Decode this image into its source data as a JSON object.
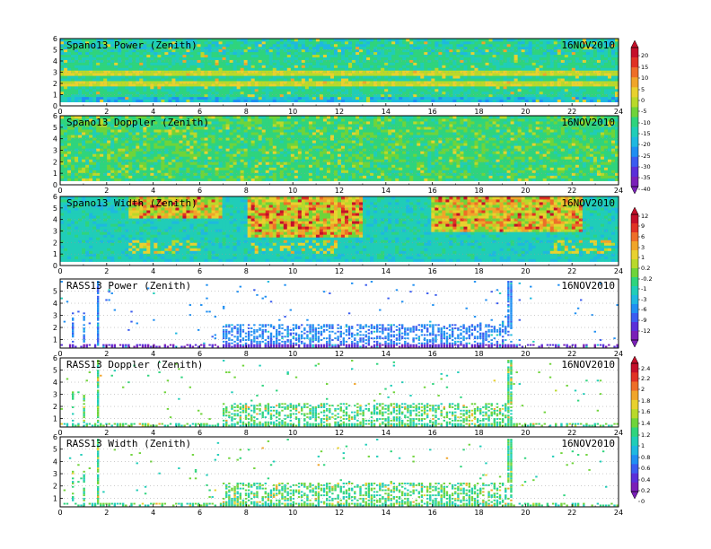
{
  "date_label": "16NOV2010",
  "colors": {
    "palette_a": [
      "#7a1fb8",
      "#5a2fd9",
      "#3a5cf0",
      "#1f8ff2",
      "#1eb8e0",
      "#20cdb8",
      "#2fd47d",
      "#6fd43a",
      "#b9d92a",
      "#e8d12f",
      "#f0a52a",
      "#ee6e28",
      "#e03224",
      "#c4102a"
    ],
    "palette_b": [
      "#7a1fb8",
      "#5a2fd9",
      "#3a5cf0",
      "#1f8ff2",
      "#1eb8e0",
      "#20cdb8",
      "#2fd47d",
      "#6fd43a",
      "#b9d92a",
      "#e8d12f",
      "#f0a52a",
      "#ee6e28",
      "#e03224",
      "#c4102a"
    ]
  },
  "chart_data": [
    {
      "type": "heatmap",
      "title": "Spano13 Power (Zenith)",
      "date": "16NOV2010",
      "x_ticks": [
        "0",
        "2",
        "4",
        "6",
        "8",
        "10",
        "12",
        "14",
        "16",
        "18",
        "20",
        "22",
        "24"
      ],
      "y_ticks": [
        "0",
        "1",
        "2",
        "3",
        "4",
        "5",
        "6"
      ],
      "xlim": [
        0,
        24
      ],
      "ylim": [
        0,
        6
      ],
      "colorbar_ref": "cb1",
      "dominant_levels": [
        "-15",
        "-10",
        "5"
      ],
      "notes": "Enhanced power layers near 2 and 3 km across the day; strong near-surface values below 1 km."
    },
    {
      "type": "heatmap",
      "title": "Spano13 Doppler (Zenith)",
      "date": "16NOV2010",
      "x_ticks": [
        "0",
        "2",
        "4",
        "6",
        "8",
        "10",
        "12",
        "14",
        "16",
        "18",
        "20",
        "22",
        "24"
      ],
      "y_ticks": [
        "0",
        "1",
        "2",
        "3",
        "4",
        "5",
        "6"
      ],
      "xlim": [
        0,
        24
      ],
      "ylim": [
        0,
        6
      ],
      "colorbar_ref": "cb1",
      "dominant_levels": [
        "-10",
        "-5"
      ]
    },
    {
      "type": "heatmap",
      "title": "Spano13 Width (Zenith)",
      "date": "16NOV2010",
      "x_ticks": [
        "0",
        "2",
        "4",
        "6",
        "8",
        "10",
        "12",
        "14",
        "16",
        "18",
        "20",
        "22",
        "24"
      ],
      "y_ticks": [
        "0",
        "1",
        "2",
        "3",
        "4",
        "5",
        "6"
      ],
      "xlim": [
        0,
        24
      ],
      "ylim": [
        0,
        6
      ],
      "colorbar_ref": "cb2",
      "dominant_levels": [
        "-1",
        "3",
        "9"
      ],
      "notes": "Large widths above 2.5 km between about 8 and 13 h and again near 16 to 22 h."
    },
    {
      "type": "scatter",
      "title": "RASS13 Power (Zenith)",
      "date": "16NOV2010",
      "x_ticks": [
        "0",
        "2",
        "4",
        "6",
        "8",
        "10",
        "12",
        "14",
        "16",
        "18",
        "20",
        "22",
        "24"
      ],
      "y_ticks": [
        "1",
        "2",
        "3",
        "4",
        "5"
      ],
      "xlim": [
        0,
        24
      ],
      "ylim": [
        0.3,
        6
      ],
      "colorbar_ref": "cb2",
      "dominant_levels": [
        "-12",
        "-9",
        "-6"
      ],
      "notes": "Returns mostly below 2.3 km, with columns near 1.0, 1.6 and 19.3 h."
    },
    {
      "type": "scatter",
      "title": "RASS13 Doppler (Zenith)",
      "date": "16NOV2010",
      "x_ticks": [
        "0",
        "2",
        "4",
        "6",
        "8",
        "10",
        "12",
        "14",
        "16",
        "18",
        "20",
        "22",
        "24"
      ],
      "y_ticks": [
        "1",
        "2",
        "3",
        "4",
        "5",
        "6"
      ],
      "xlim": [
        0,
        24
      ],
      "ylim": [
        0.3,
        6
      ],
      "colorbar_ref": "cb3",
      "dominant_levels": [
        "0.8",
        "1",
        "1.2"
      ]
    },
    {
      "type": "scatter",
      "title": "RASS13 Width (Zenith)",
      "date": "16NOV2010",
      "x_ticks": [
        "0",
        "2",
        "4",
        "6",
        "8",
        "10",
        "12",
        "14",
        "16",
        "18",
        "20",
        "22",
        "24"
      ],
      "y_ticks": [
        "1",
        "2",
        "3",
        "4",
        "5",
        "6"
      ],
      "xlim": [
        0,
        24
      ],
      "ylim": [
        0.3,
        6
      ],
      "colorbar_ref": "cb3",
      "dominant_levels": [
        "0.8",
        "1",
        "1.2"
      ]
    }
  ],
  "colorbars": [
    {
      "id": "cb1",
      "labels": [
        "20",
        "15",
        "10",
        "5",
        "0",
        "-5",
        "-10",
        "-15",
        "-20",
        "-25",
        "-30",
        "-35",
        "-40"
      ]
    },
    {
      "id": "cb2",
      "labels": [
        "12",
        "9",
        "6",
        "3",
        "1",
        "0.2",
        "-0.2",
        "-1",
        "-3",
        "-6",
        "-9",
        "-12"
      ]
    },
    {
      "id": "cb3",
      "labels": [
        "2.4",
        "2.2",
        "2",
        "1.8",
        "1.6",
        "1.4",
        "1.2",
        "1",
        "0.8",
        "0.6",
        "0.4",
        "0.2",
        "0"
      ]
    }
  ]
}
